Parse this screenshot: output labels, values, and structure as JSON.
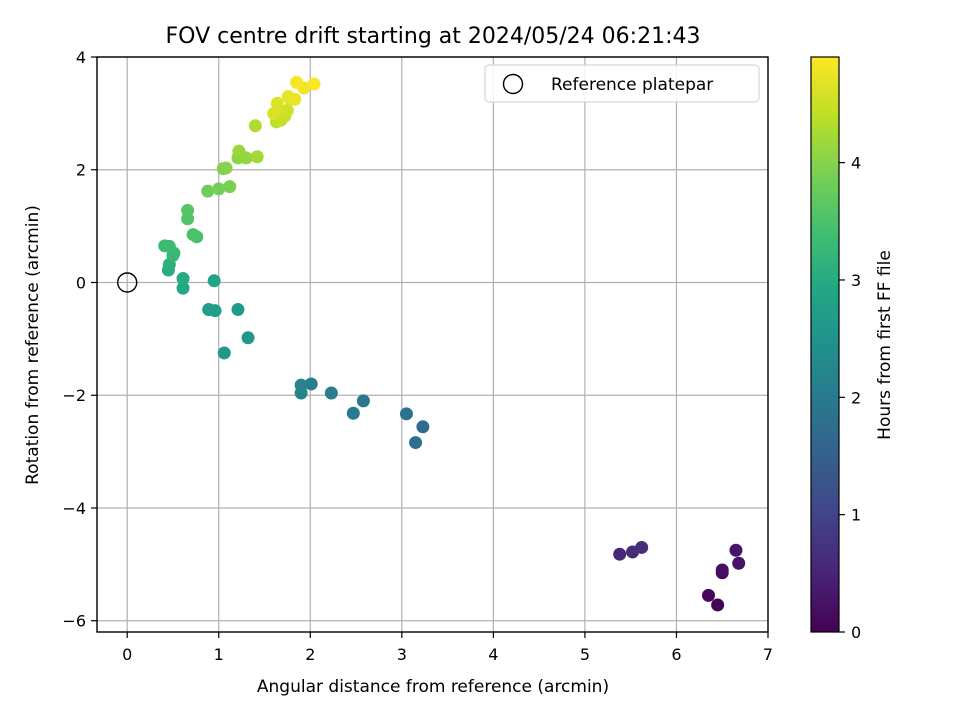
{
  "chart_data": {
    "type": "scatter",
    "title": "FOV centre drift starting at 2024/05/24 06:21:43",
    "xlabel": "Angular distance from reference (arcmin)",
    "ylabel": "Rotation from reference (arcmin)",
    "xlim": [
      -0.33,
      7.0
    ],
    "ylim": [
      -6.2,
      4.0
    ],
    "xticks": [
      0,
      1,
      2,
      3,
      4,
      5,
      6,
      7
    ],
    "xtick_labels": [
      "0",
      "1",
      "2",
      "3",
      "4",
      "5",
      "6",
      "7"
    ],
    "yticks": [
      -6,
      -4,
      -2,
      0,
      2,
      4
    ],
    "ytick_labels": [
      "−6",
      "−4",
      "−2",
      "0",
      "2",
      "4"
    ],
    "grid": true,
    "legend": {
      "position": "top-right",
      "entries": [
        {
          "label": "Reference platepar",
          "marker": "open-circle"
        }
      ]
    },
    "reference_point": {
      "x": 0,
      "y": 0
    },
    "colorbar": {
      "label": "Hours from first FF file",
      "colormap": "viridis",
      "range": [
        0,
        4.9
      ],
      "ticks": [
        0,
        1,
        2,
        3,
        4
      ],
      "tick_labels": [
        "0",
        "1",
        "2",
        "3",
        "4"
      ]
    },
    "points": [
      {
        "x": 6.45,
        "y": -5.72,
        "c": 0.05
      },
      {
        "x": 6.35,
        "y": -5.55,
        "c": 0.1
      },
      {
        "x": 6.5,
        "y": -5.15,
        "c": 0.15
      },
      {
        "x": 6.5,
        "y": -5.1,
        "c": 0.2
      },
      {
        "x": 6.68,
        "y": -4.98,
        "c": 0.25
      },
      {
        "x": 6.65,
        "y": -4.75,
        "c": 0.3
      },
      {
        "x": 5.38,
        "y": -4.82,
        "c": 0.55
      },
      {
        "x": 5.52,
        "y": -4.78,
        "c": 0.6
      },
      {
        "x": 5.62,
        "y": -4.7,
        "c": 0.65
      },
      {
        "x": 3.23,
        "y": -2.56,
        "c": 1.75
      },
      {
        "x": 3.15,
        "y": -2.84,
        "c": 1.8
      },
      {
        "x": 3.05,
        "y": -2.33,
        "c": 1.85
      },
      {
        "x": 2.58,
        "y": -2.1,
        "c": 1.95
      },
      {
        "x": 2.47,
        "y": -2.32,
        "c": 2.0
      },
      {
        "x": 2.23,
        "y": -1.96,
        "c": 2.05
      },
      {
        "x": 2.01,
        "y": -1.8,
        "c": 2.1
      },
      {
        "x": 1.9,
        "y": -1.82,
        "c": 2.15
      },
      {
        "x": 1.9,
        "y": -1.96,
        "c": 2.2
      },
      {
        "x": 1.32,
        "y": -0.98,
        "c": 2.55
      },
      {
        "x": 1.06,
        "y": -1.25,
        "c": 2.6
      },
      {
        "x": 1.21,
        "y": -0.48,
        "c": 2.65
      },
      {
        "x": 0.96,
        "y": -0.5,
        "c": 2.75
      },
      {
        "x": 0.89,
        "y": -0.48,
        "c": 2.7
      },
      {
        "x": 0.95,
        "y": 0.03,
        "c": 2.85
      },
      {
        "x": 0.61,
        "y": -0.1,
        "c": 2.95
      },
      {
        "x": 0.61,
        "y": 0.07,
        "c": 3.0
      },
      {
        "x": 0.45,
        "y": 0.22,
        "c": 3.05
      },
      {
        "x": 0.46,
        "y": 0.32,
        "c": 3.1
      },
      {
        "x": 0.5,
        "y": 0.48,
        "c": 3.2
      },
      {
        "x": 0.51,
        "y": 0.52,
        "c": 3.25
      },
      {
        "x": 0.46,
        "y": 0.64,
        "c": 3.3
      },
      {
        "x": 0.41,
        "y": 0.65,
        "c": 3.35
      },
      {
        "x": 0.76,
        "y": 0.81,
        "c": 3.45
      },
      {
        "x": 0.72,
        "y": 0.85,
        "c": 3.5
      },
      {
        "x": 0.66,
        "y": 1.13,
        "c": 3.55
      },
      {
        "x": 0.66,
        "y": 1.28,
        "c": 3.6
      },
      {
        "x": 0.88,
        "y": 1.62,
        "c": 3.8
      },
      {
        "x": 1.0,
        "y": 1.66,
        "c": 3.85
      },
      {
        "x": 1.12,
        "y": 1.7,
        "c": 3.9
      },
      {
        "x": 1.05,
        "y": 2.02,
        "c": 3.95
      },
      {
        "x": 1.08,
        "y": 2.03,
        "c": 4.0
      },
      {
        "x": 1.21,
        "y": 2.21,
        "c": 4.05
      },
      {
        "x": 1.3,
        "y": 2.21,
        "c": 4.1
      },
      {
        "x": 1.22,
        "y": 2.33,
        "c": 4.15
      },
      {
        "x": 1.42,
        "y": 2.23,
        "c": 4.2
      },
      {
        "x": 1.4,
        "y": 2.78,
        "c": 4.3
      },
      {
        "x": 1.63,
        "y": 2.85,
        "c": 4.4
      },
      {
        "x": 1.68,
        "y": 2.88,
        "c": 4.45
      },
      {
        "x": 1.72,
        "y": 2.95,
        "c": 4.5
      },
      {
        "x": 1.75,
        "y": 3.05,
        "c": 4.55
      },
      {
        "x": 1.6,
        "y": 3.0,
        "c": 4.6
      },
      {
        "x": 1.65,
        "y": 3.1,
        "c": 4.62
      },
      {
        "x": 1.64,
        "y": 3.18,
        "c": 4.65
      },
      {
        "x": 1.78,
        "y": 3.25,
        "c": 4.68
      },
      {
        "x": 1.76,
        "y": 3.3,
        "c": 4.72
      },
      {
        "x": 1.83,
        "y": 3.25,
        "c": 4.75
      },
      {
        "x": 1.93,
        "y": 3.45,
        "c": 4.8
      },
      {
        "x": 1.85,
        "y": 3.55,
        "c": 4.85
      },
      {
        "x": 2.04,
        "y": 3.52,
        "c": 4.88
      }
    ]
  }
}
